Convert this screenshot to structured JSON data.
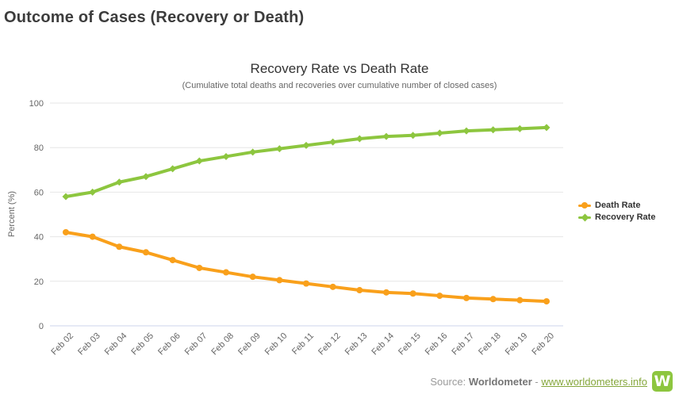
{
  "page": {
    "title": "Outcome of Cases (Recovery or Death)"
  },
  "chart_data": {
    "type": "line",
    "title": "Recovery Rate vs Death Rate",
    "subtitle": "(Cumulative total deaths and recoveries over cumulative number of closed cases)",
    "xlabel": "",
    "ylabel": "Percent (%)",
    "ylim": [
      0,
      100
    ],
    "yticks": [
      0,
      20,
      40,
      60,
      80,
      100
    ],
    "grid": "horizontal",
    "legend_position": "right",
    "categories": [
      "Feb 02",
      "Feb 03",
      "Feb 04",
      "Feb 05",
      "Feb 06",
      "Feb 07",
      "Feb 08",
      "Feb 09",
      "Feb 10",
      "Feb 11",
      "Feb 12",
      "Feb 13",
      "Feb 14",
      "Feb 15",
      "Feb 16",
      "Feb 17",
      "Feb 18",
      "Feb 19",
      "Feb 20"
    ],
    "series": [
      {
        "name": "Death Rate",
        "color": "#F9A01B",
        "marker": "circle",
        "values": [
          42,
          40,
          35.5,
          33,
          29.5,
          26,
          24,
          22,
          20.5,
          19,
          17.5,
          16,
          15,
          14.5,
          13.5,
          12.5,
          12,
          11.5,
          11
        ]
      },
      {
        "name": "Recovery Rate",
        "color": "#8DC63F",
        "marker": "diamond",
        "values": [
          58,
          60,
          64.5,
          67,
          70.5,
          74,
          76,
          78,
          79.5,
          81,
          82.5,
          84,
          85,
          85.5,
          86.5,
          87.5,
          88,
          88.5,
          89
        ]
      }
    ]
  },
  "footer": {
    "source_prefix": "Source:",
    "source_name": "Worldometer",
    "separator": "-",
    "link_text": "www.worldometers.info",
    "logo_letter": "W"
  },
  "colors": {
    "grid_line": "#E6E6E6",
    "axis_line": "#CCD6EB",
    "tick_label": "#666666",
    "chart_title": "#333333",
    "chart_subtitle": "#666666",
    "page_title": "#3C3C3C",
    "legend_text": "#333333",
    "link": "#85A73C",
    "logo_bg": "#8DC63F"
  }
}
